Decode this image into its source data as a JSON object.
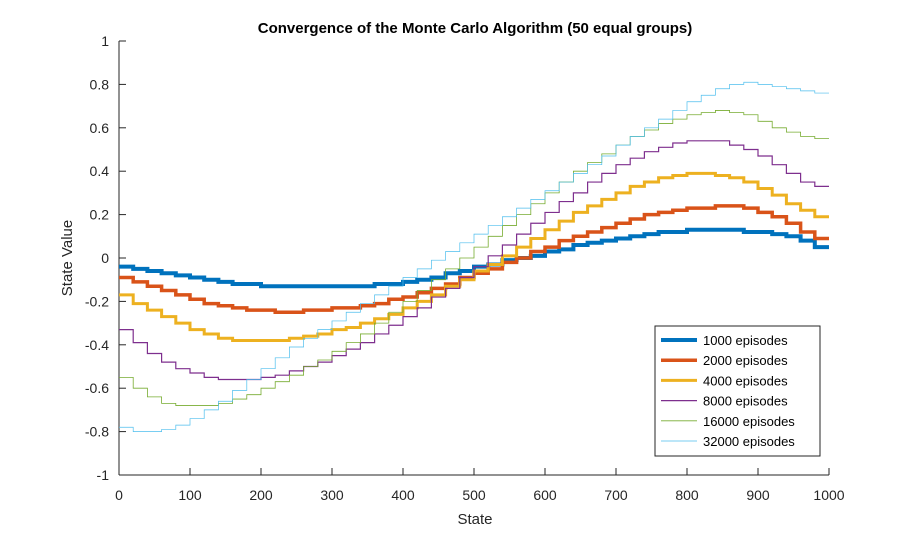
{
  "chart_data": {
    "type": "line",
    "title": "Convergence of the Monte Carlo Algorithm (50 equal groups)",
    "xlabel": "State",
    "ylabel": "State Value",
    "xlim": [
      0,
      1000
    ],
    "ylim": [
      -1,
      1
    ],
    "xticks": [
      0,
      100,
      200,
      300,
      400,
      500,
      600,
      700,
      800,
      900,
      1000
    ],
    "yticks": [
      -1,
      -0.8,
      -0.6,
      -0.4,
      -0.2,
      0,
      0.2,
      0.4,
      0.6,
      0.8,
      1
    ],
    "grid": false,
    "legend_position": "bottom-right",
    "series": [
      {
        "name": "1000 episodes",
        "color": "#0072BD",
        "line_style": "thickest",
        "amplitude": 0.135,
        "phase_shift": 0
      },
      {
        "name": "2000 episodes",
        "color": "#D95319",
        "line_style": "thick",
        "amplitude": 0.245,
        "phase_shift": 0
      },
      {
        "name": "4000 episodes",
        "color": "#EDB120",
        "line_style": "thick",
        "amplitude": 0.385,
        "phase_shift": 0
      },
      {
        "name": "8000 episodes",
        "color": "#7E2F8E",
        "line_style": "thin",
        "amplitude": 0.56,
        "phase_shift": 0
      },
      {
        "name": "16000 episodes",
        "color": "#77AC30",
        "line_style": "thin",
        "amplitude": 0.685,
        "phase_shift": 0
      },
      {
        "name": "32000 episodes",
        "color": "#4DBEEE",
        "line_style": "thin",
        "amplitude": 0.8,
        "phase_shift": 0
      }
    ],
    "step_groups": 50,
    "x_group_size": 20,
    "series_values": [
      [
        -0.04,
        -0.05,
        -0.06,
        -0.07,
        -0.08,
        -0.09,
        -0.1,
        -0.11,
        -0.12,
        -0.12,
        -0.13,
        -0.13,
        -0.13,
        -0.13,
        -0.13,
        -0.13,
        -0.13,
        -0.13,
        -0.12,
        -0.12,
        -0.11,
        -0.1,
        -0.09,
        -0.07,
        -0.06,
        -0.04,
        -0.03,
        -0.01,
        0.0,
        0.01,
        0.03,
        0.04,
        0.06,
        0.07,
        0.08,
        0.09,
        0.1,
        0.11,
        0.12,
        0.12,
        0.13,
        0.13,
        0.13,
        0.13,
        0.12,
        0.12,
        0.11,
        0.1,
        0.08,
        0.05
      ],
      [
        -0.09,
        -0.11,
        -0.13,
        -0.15,
        -0.17,
        -0.19,
        -0.21,
        -0.22,
        -0.23,
        -0.24,
        -0.24,
        -0.25,
        -0.25,
        -0.24,
        -0.24,
        -0.23,
        -0.23,
        -0.22,
        -0.21,
        -0.19,
        -0.18,
        -0.16,
        -0.14,
        -0.12,
        -0.09,
        -0.07,
        -0.05,
        -0.02,
        0.0,
        0.03,
        0.05,
        0.08,
        0.1,
        0.12,
        0.14,
        0.16,
        0.18,
        0.2,
        0.21,
        0.22,
        0.23,
        0.23,
        0.24,
        0.24,
        0.23,
        0.21,
        0.19,
        0.16,
        0.12,
        0.09
      ],
      [
        -0.17,
        -0.21,
        -0.24,
        -0.27,
        -0.3,
        -0.33,
        -0.35,
        -0.37,
        -0.38,
        -0.38,
        -0.38,
        -0.38,
        -0.37,
        -0.36,
        -0.35,
        -0.33,
        -0.32,
        -0.3,
        -0.28,
        -0.26,
        -0.23,
        -0.2,
        -0.17,
        -0.13,
        -0.1,
        -0.06,
        -0.03,
        0.01,
        0.05,
        0.09,
        0.13,
        0.17,
        0.21,
        0.24,
        0.27,
        0.3,
        0.33,
        0.35,
        0.37,
        0.38,
        0.39,
        0.39,
        0.38,
        0.37,
        0.35,
        0.32,
        0.29,
        0.25,
        0.22,
        0.19
      ],
      [
        -0.33,
        -0.39,
        -0.44,
        -0.48,
        -0.51,
        -0.53,
        -0.55,
        -0.56,
        -0.56,
        -0.56,
        -0.55,
        -0.54,
        -0.52,
        -0.5,
        -0.48,
        -0.45,
        -0.42,
        -0.39,
        -0.35,
        -0.31,
        -0.27,
        -0.23,
        -0.18,
        -0.14,
        -0.09,
        -0.04,
        0.01,
        0.06,
        0.11,
        0.16,
        0.21,
        0.26,
        0.3,
        0.35,
        0.39,
        0.43,
        0.46,
        0.49,
        0.51,
        0.53,
        0.54,
        0.54,
        0.54,
        0.52,
        0.5,
        0.47,
        0.43,
        0.39,
        0.35,
        0.33
      ],
      [
        -0.55,
        -0.6,
        -0.64,
        -0.67,
        -0.68,
        -0.68,
        -0.68,
        -0.67,
        -0.65,
        -0.63,
        -0.6,
        -0.57,
        -0.54,
        -0.5,
        -0.47,
        -0.43,
        -0.39,
        -0.35,
        -0.3,
        -0.25,
        -0.2,
        -0.15,
        -0.1,
        -0.05,
        0.0,
        0.05,
        0.1,
        0.15,
        0.2,
        0.25,
        0.3,
        0.35,
        0.4,
        0.44,
        0.48,
        0.52,
        0.56,
        0.59,
        0.62,
        0.64,
        0.66,
        0.67,
        0.68,
        0.67,
        0.66,
        0.63,
        0.6,
        0.58,
        0.56,
        0.55
      ],
      [
        -0.78,
        -0.8,
        -0.8,
        -0.79,
        -0.77,
        -0.74,
        -0.7,
        -0.66,
        -0.61,
        -0.56,
        -0.51,
        -0.46,
        -0.41,
        -0.37,
        -0.33,
        -0.29,
        -0.25,
        -0.21,
        -0.17,
        -0.13,
        -0.09,
        -0.05,
        -0.01,
        0.03,
        0.07,
        0.11,
        0.15,
        0.19,
        0.23,
        0.27,
        0.31,
        0.35,
        0.39,
        0.43,
        0.47,
        0.52,
        0.56,
        0.6,
        0.64,
        0.68,
        0.72,
        0.75,
        0.78,
        0.8,
        0.81,
        0.8,
        0.79,
        0.78,
        0.77,
        0.76
      ]
    ],
    "series_widths": [
      4,
      3.5,
      3,
      1.2,
      0.8,
      0.7
    ]
  }
}
